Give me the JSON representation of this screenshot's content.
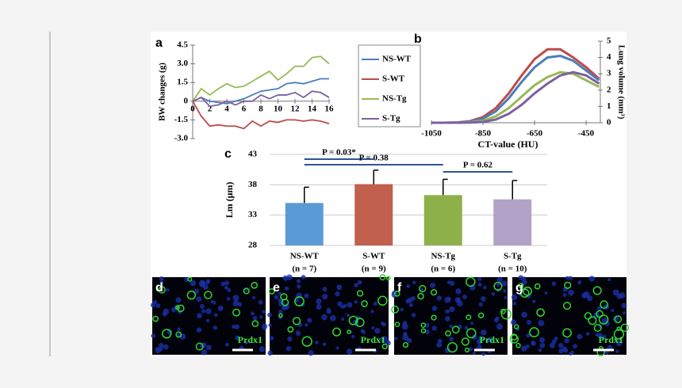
{
  "chart_data": [
    {
      "type": "line",
      "panel": "a",
      "y_label": "BW changes (g)",
      "x": [
        0,
        1,
        2,
        3,
        4,
        5,
        6,
        7,
        8,
        9,
        10,
        11,
        12,
        13,
        14,
        15,
        16
      ],
      "xlim": [
        0,
        16
      ],
      "xticks": [
        0,
        2,
        4,
        6,
        8,
        10,
        12,
        14,
        16
      ],
      "ylim": [
        -3,
        4.5
      ],
      "yticks": [
        {
          "value": 4.5,
          "label": "4.5"
        },
        {
          "value": 3,
          "label": "3.0"
        },
        {
          "value": 1.5,
          "label": "1.5"
        },
        0,
        {
          "value": -1.5,
          "label": "-1.5"
        },
        {
          "value": -3,
          "label": "-3.0"
        }
      ],
      "legend": "right",
      "series": [
        {
          "name": "NS-WT",
          "color": "#4a7ebb",
          "values": [
            0,
            0.3,
            0,
            -0.1,
            -0.2,
            0,
            0.2,
            0.5,
            0.8,
            0.9,
            1.0,
            1.4,
            1.5,
            1.4,
            1.6,
            1.8,
            1.8
          ]
        },
        {
          "name": "S-WT",
          "color": "#be4b48",
          "values": [
            0,
            -1.2,
            -2.0,
            -1.9,
            -2.0,
            -2.0,
            -2.2,
            -1.6,
            -2.0,
            -1.6,
            -1.7,
            -1.5,
            -1.5,
            -1.6,
            -1.5,
            -1.6,
            -1.8
          ]
        },
        {
          "name": "NS-Tg",
          "color": "#98b954",
          "values": [
            0,
            1.0,
            0.5,
            1.0,
            1.4,
            1.1,
            1.2,
            1.6,
            2.0,
            2.4,
            1.7,
            2.2,
            2.8,
            2.8,
            3.5,
            3.6,
            3.0
          ]
        },
        {
          "name": "S-Tg",
          "color": "#7d60a0",
          "values": [
            0,
            0.3,
            -0.4,
            -0.3,
            0,
            -0.3,
            0,
            0,
            0.5,
            0.2,
            0.5,
            0.5,
            0.7,
            0.3,
            0.8,
            0.7,
            0.3
          ]
        }
      ]
    },
    {
      "type": "line",
      "panel": "b",
      "x_label": "CT-value (HU)",
      "y_label": "Lung volume (mm³)",
      "x": [
        -1050,
        -1000,
        -950,
        -900,
        -850,
        -800,
        -750,
        -700,
        -650,
        -600,
        -550,
        -500,
        -450,
        -400
      ],
      "xlim": [
        -1050,
        -395
      ],
      "xticks": [
        -1050,
        -850,
        -650,
        -450
      ],
      "ylim": [
        0,
        5
      ],
      "yticks": [
        0,
        1,
        2,
        3,
        4,
        5
      ],
      "series": [
        {
          "color": "#be4b48",
          "values": [
            0,
            0,
            0.02,
            0.1,
            0.35,
            0.9,
            1.8,
            2.9,
            3.9,
            4.5,
            4.5,
            4.0,
            3.4,
            2.7
          ]
        },
        {
          "color": "#4a7ebb",
          "values": [
            0,
            0,
            0.01,
            0.07,
            0.25,
            0.7,
            1.5,
            2.5,
            3.4,
            4.0,
            4.1,
            3.8,
            3.2,
            2.6
          ]
        },
        {
          "color": "#98b954",
          "values": [
            0,
            0,
            0,
            0.03,
            0.12,
            0.4,
            0.9,
            1.6,
            2.3,
            2.8,
            3.1,
            3.0,
            2.6,
            2.2
          ]
        },
        {
          "color": "#7d60a0",
          "values": [
            0,
            0,
            0,
            0.01,
            0.05,
            0.2,
            0.55,
            1.1,
            1.8,
            2.4,
            2.9,
            3.1,
            2.9,
            2.4
          ]
        }
      ]
    },
    {
      "type": "bar",
      "panel": "c",
      "y_label": "Lm (μm)",
      "categories": [
        "NS-WT",
        "S-WT",
        "NS-Tg",
        "S-Tg"
      ],
      "sample_sizes": [
        "(n = 7)",
        "(n = 9)",
        "(n = 6)",
        "(n = 10)"
      ],
      "values": [
        35.0,
        38.1,
        36.3,
        35.6
      ],
      "errors": [
        2.6,
        2.3,
        2.6,
        3.1
      ],
      "colors": [
        "#5b9bd5",
        "#c0604d",
        "#8db04a",
        "#b3a2c7"
      ],
      "ylim": [
        28,
        43
      ],
      "yticks": [
        28,
        33,
        38,
        43
      ],
      "grid": true,
      "annotations": [
        "P = 0.03*",
        "P = 0.38",
        "P = 0.62"
      ]
    }
  ],
  "micrographs": [
    {
      "panel": "d",
      "marker": "Prdx1"
    },
    {
      "panel": "e",
      "marker": "Prdx1"
    },
    {
      "panel": "f",
      "marker": "Prdx1"
    },
    {
      "panel": "g",
      "marker": "Prdx1"
    }
  ]
}
